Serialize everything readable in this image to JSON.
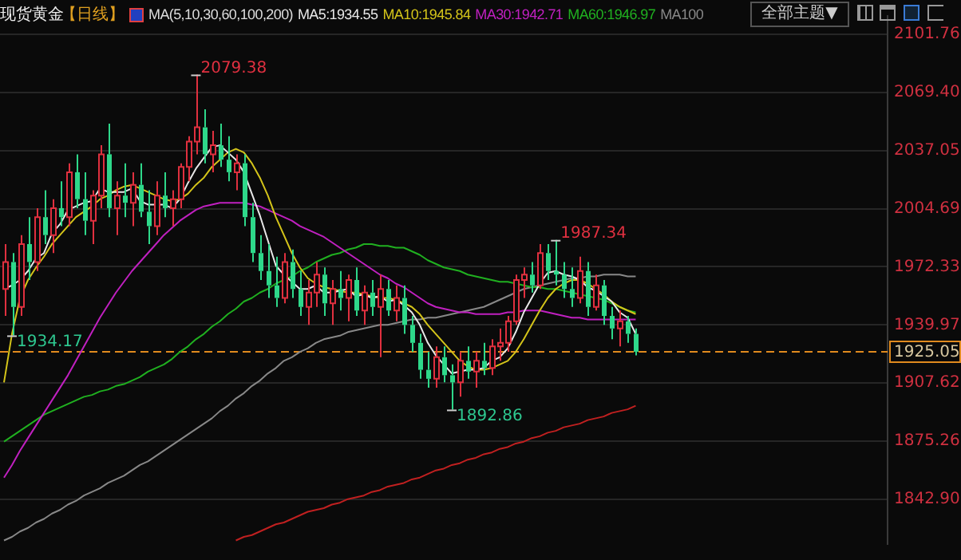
{
  "chart_data": {
    "type": "candlestick",
    "title": "现货黄金",
    "subtitle": "【日线】",
    "legend_title": "MA(5,10,30,60,100,200)",
    "legend": "top",
    "grid": "y",
    "tick_labels": "y",
    "categories": [
      null,
      null,
      null,
      null,
      null,
      null,
      null,
      null,
      null,
      null,
      null,
      null,
      null,
      null,
      null,
      null,
      null,
      null,
      null,
      null,
      null,
      null,
      null,
      null,
      null,
      null,
      null,
      null,
      null,
      null,
      null,
      null,
      null,
      null,
      null,
      null,
      null,
      null,
      null,
      null,
      null,
      null,
      null,
      null,
      null,
      null,
      null,
      null,
      null,
      null,
      null,
      null,
      null,
      null,
      null,
      null,
      null,
      null,
      null,
      null,
      null,
      null,
      null,
      null,
      null,
      null,
      null,
      null,
      null,
      null,
      null,
      null,
      null,
      null,
      null,
      null,
      null,
      null,
      null,
      null,
      null,
      null,
      null,
      null,
      null,
      null,
      null,
      null,
      null,
      null,
      null,
      null,
      null,
      null,
      null,
      null,
      null,
      null,
      null,
      null,
      null,
      null,
      null,
      null,
      null,
      null,
      null,
      null,
      null,
      null,
      null
    ],
    "ylim": [
      1818,
      2112
    ],
    "yticks": [
      {
        "value": 1842.9,
        "label": "1842.90"
      },
      1875.26,
      1907.62,
      1939.97,
      1972.33,
      2004.69,
      2037.05,
      {
        "value": 2069.4,
        "label": "2069.40"
      },
      2101.76
    ],
    "ohlc": [
      [
        1960,
        1985,
        1945,
        1975
      ],
      [
        1975,
        1980,
        1934.17,
        1950
      ],
      [
        1950,
        1990,
        1945,
        1985
      ],
      [
        1985,
        2000,
        1965,
        1975
      ],
      [
        1975,
        2005,
        1970,
        2000
      ],
      [
        2000,
        2015,
        1985,
        1990
      ],
      [
        1990,
        2010,
        1980,
        2005
      ],
      [
        2005,
        2020,
        1995,
        2000
      ],
      [
        2000,
        2030,
        1995,
        2025
      ],
      [
        2025,
        2035,
        2005,
        2010
      ],
      [
        2010,
        2025,
        1990,
        1998
      ],
      [
        1998,
        2015,
        1985,
        2012
      ],
      [
        2012,
        2040,
        2005,
        2035
      ],
      [
        2035,
        2052,
        2000,
        2005
      ],
      [
        2005,
        2020,
        1990,
        2012
      ],
      [
        2012,
        2030,
        2000,
        2008
      ],
      [
        2008,
        2025,
        1995,
        2018
      ],
      [
        2018,
        2030,
        2000,
        2003
      ],
      [
        2003,
        2015,
        1985,
        1995
      ],
      [
        1995,
        2020,
        1990,
        2012
      ],
      [
        2012,
        2025,
        2000,
        2005
      ],
      [
        2005,
        2015,
        1995,
        2010
      ],
      [
        2010,
        2030,
        2005,
        2028
      ],
      [
        2028,
        2045,
        2020,
        2042
      ],
      [
        2042,
        2079.38,
        2035,
        2050
      ],
      [
        2050,
        2060,
        2030,
        2035
      ],
      [
        2035,
        2048,
        2025,
        2040
      ],
      [
        2040,
        2052,
        2028,
        2032
      ],
      [
        2032,
        2045,
        2020,
        2025
      ],
      [
        2025,
        2035,
        2015,
        2030
      ],
      [
        2030,
        2035,
        1995,
        2000
      ],
      [
        2000,
        2008,
        1975,
        1980
      ],
      [
        1980,
        1990,
        1965,
        1970
      ],
      [
        1970,
        1985,
        1955,
        1962
      ],
      [
        1962,
        1978,
        1950,
        1955
      ],
      [
        1955,
        1980,
        1952,
        1975
      ],
      [
        1975,
        1982,
        1955,
        1960
      ],
      [
        1960,
        1970,
        1945,
        1950
      ],
      [
        1950,
        1965,
        1940,
        1958
      ],
      [
        1958,
        1975,
        1950,
        1968
      ],
      [
        1968,
        1972,
        1945,
        1952
      ],
      [
        1952,
        1965,
        1940,
        1960
      ],
      [
        1960,
        1970,
        1948,
        1955
      ],
      [
        1955,
        1968,
        1942,
        1965
      ],
      [
        1965,
        1972,
        1945,
        1948
      ],
      [
        1948,
        1962,
        1940,
        1958
      ],
      [
        1958,
        1965,
        1945,
        1950
      ],
      [
        1950,
        1968,
        1922,
        1960
      ],
      [
        1960,
        1965,
        1945,
        1948
      ],
      [
        1948,
        1962,
        1942,
        1955
      ],
      [
        1955,
        1962,
        1935,
        1940
      ],
      [
        1940,
        1945,
        1925,
        1930
      ],
      [
        1930,
        1935,
        1910,
        1915
      ],
      [
        1915,
        1925,
        1905,
        1910
      ],
      [
        1910,
        1928,
        1905,
        1922
      ],
      [
        1922,
        1928,
        1908,
        1912
      ],
      [
        1912,
        1918,
        1892.86,
        1908
      ],
      [
        1908,
        1925,
        1900,
        1920
      ],
      [
        1920,
        1928,
        1910,
        1914
      ],
      [
        1914,
        1925,
        1905,
        1920
      ],
      [
        1920,
        1930,
        1912,
        1916
      ],
      [
        1916,
        1932,
        1912,
        1928
      ],
      [
        1928,
        1938,
        1920,
        1930
      ],
      [
        1930,
        1945,
        1925,
        1942
      ],
      [
        1942,
        1968,
        1940,
        1965
      ],
      [
        1965,
        1972,
        1955,
        1968
      ],
      [
        1968,
        1975,
        1958,
        1962
      ],
      [
        1962,
        1985,
        1960,
        1980
      ],
      [
        1980,
        1985,
        1965,
        1970
      ],
      [
        1970,
        1987.34,
        1962,
        1968
      ],
      [
        1968,
        1975,
        1955,
        1960
      ],
      [
        1960,
        1972,
        1950,
        1955
      ],
      [
        1955,
        1978,
        1952,
        1970
      ],
      [
        1970,
        1975,
        1945,
        1950
      ],
      [
        1950,
        1968,
        1948,
        1962
      ],
      [
        1962,
        1965,
        1940,
        1945
      ],
      [
        1945,
        1950,
        1932,
        1938
      ],
      [
        1938,
        1948,
        1928,
        1942
      ],
      [
        1942,
        1945,
        1930,
        1935
      ],
      [
        1935,
        1938,
        1923,
        1925.05
      ],
      null,
      null,
      null,
      null,
      null,
      null,
      null,
      null,
      null,
      null,
      null,
      null,
      null,
      null,
      null,
      null,
      null,
      null,
      null,
      null,
      null,
      null,
      null,
      null,
      null,
      null,
      null,
      null,
      null,
      null,
      null
    ],
    "series": [
      {
        "type": "line",
        "name": "MA5:1934.55",
        "color": "#e8e8e8",
        "values": [
          1960,
          1962,
          1965,
          1970,
          1977,
          1980,
          1991,
          1996,
          2004,
          2006,
          2008,
          2009,
          2016,
          2014,
          2014,
          2014,
          2016,
          2009,
          2007,
          2007,
          2007,
          2005,
          2010,
          2019,
          2027,
          2033,
          2039,
          2040,
          2036,
          2032,
          2025,
          2013,
          2001,
          1987,
          1973,
          1968,
          1964,
          1960,
          1960,
          1962,
          1958,
          1958,
          1959,
          1960,
          1956,
          1957,
          1955,
          1956,
          1953,
          1954,
          1951,
          1947,
          1940,
          1930,
          1923,
          1918,
          1913,
          1914,
          1915,
          1915,
          1916,
          1920,
          1922,
          1927,
          1936,
          1947,
          1955,
          1963,
          1969,
          1970,
          1968,
          1967,
          1965,
          1961,
          1959,
          1956,
          1953,
          1947,
          1944,
          1935,
          null,
          null,
          null,
          null,
          null,
          null,
          null,
          null,
          null,
          null,
          null,
          null,
          null,
          null,
          null,
          null,
          null,
          null,
          null,
          null,
          null,
          null,
          null,
          null,
          null,
          null,
          null,
          null,
          null,
          null,
          null
        ]
      },
      {
        "type": "line",
        "name": "MA10:1945.84",
        "color": "#d4c41a",
        "values": [
          1908,
          1935,
          1955,
          1965,
          1972,
          1978,
          1985,
          1990,
          1995,
          2000,
          2003,
          2006,
          2010,
          2012,
          2015,
          2017,
          2018,
          2016,
          2014,
          2012,
          2010,
          2009,
          2010,
          2013,
          2018,
          2022,
          2028,
          2032,
          2036,
          2038,
          2036,
          2030,
          2022,
          2012,
          2000,
          1990,
          1980,
          1972,
          1966,
          1963,
          1961,
          1960,
          1959,
          1958,
          1958,
          1957,
          1956,
          1955,
          1955,
          1954,
          1952,
          1950,
          1946,
          1940,
          1935,
          1930,
          1925,
          1920,
          1917,
          1915,
          1915,
          1916,
          1918,
          1920,
          1925,
          1932,
          1940,
          1948,
          1955,
          1960,
          1963,
          1965,
          1965,
          1963,
          1960,
          1957,
          1953,
          1950,
          1948,
          1946,
          null,
          null,
          null,
          null,
          null,
          null,
          null,
          null,
          null,
          null,
          null,
          null,
          null,
          null,
          null,
          null,
          null,
          null,
          null,
          null,
          null,
          null,
          null,
          null,
          null,
          null,
          null,
          null,
          null,
          null,
          null
        ]
      },
      {
        "type": "line",
        "name": "MA30:1942.71",
        "color": "#c020c0",
        "values": [
          1855,
          1862,
          1870,
          1877,
          1884,
          1891,
          1898,
          1905,
          1912,
          1920,
          1928,
          1936,
          1944,
          1951,
          1958,
          1964,
          1970,
          1975,
          1980,
          1985,
          1990,
          1994,
          1998,
          2001,
          2004,
          2006,
          2007,
          2008,
          2008,
          2008,
          2008,
          2007,
          2006,
          2004,
          2002,
          2000,
          1998,
          1995,
          1993,
          1991,
          1989,
          1986,
          1983,
          1980,
          1977,
          1974,
          1971,
          1968,
          1966,
          1963,
          1961,
          1958,
          1955,
          1952,
          1950,
          1949,
          1948,
          1947,
          1947,
          1946,
          1946,
          1946,
          1946,
          1947,
          1947,
          1948,
          1948,
          1948,
          1947,
          1946,
          1945,
          1944,
          1944,
          1943,
          1943,
          1943,
          1943,
          1943,
          1943,
          1943,
          null,
          null,
          null,
          null,
          null,
          null,
          null,
          null,
          null,
          null,
          null,
          null,
          null,
          null,
          null,
          null,
          null,
          null,
          null,
          null,
          null,
          null,
          null,
          null,
          null,
          null,
          null,
          null,
          null,
          null,
          null
        ]
      },
      {
        "type": "line",
        "name": "MA60:1946.97",
        "color": "#20b020",
        "values": [
          1875,
          1878,
          1881,
          1884,
          1887,
          1890,
          1892,
          1894,
          1896,
          1898,
          1900,
          1901,
          1903,
          1904,
          1906,
          1907,
          1909,
          1911,
          1914,
          1916,
          1918,
          1921,
          1925,
          1928,
          1932,
          1935,
          1939,
          1942,
          1946,
          1949,
          1953,
          1955,
          1958,
          1960,
          1963,
          1965,
          1967,
          1970,
          1972,
          1975,
          1977,
          1979,
          1980,
          1982,
          1983,
          1985,
          1985,
          1984,
          1984,
          1983,
          1983,
          1981,
          1979,
          1976,
          1974,
          1972,
          1971,
          1970,
          1968,
          1967,
          1966,
          1965,
          1964,
          1964,
          1963,
          1962,
          1961,
          1961,
          1960,
          1960,
          1959,
          1958,
          1957,
          1956,
          1955,
          1954,
          1952,
          1950,
          1948,
          1947,
          null,
          null,
          null,
          null,
          null,
          null,
          null,
          null,
          null,
          null,
          null,
          null,
          null,
          null,
          null,
          null,
          null,
          null,
          null,
          null,
          null,
          null,
          null,
          null,
          null,
          null,
          null,
          null,
          null,
          null,
          null
        ]
      },
      {
        "type": "line",
        "name": "MA100",
        "color": "#888888",
        "values": [
          1820,
          1822,
          1825,
          1827,
          1830,
          1832,
          1835,
          1837,
          1840,
          1842,
          1845,
          1847,
          1849,
          1852,
          1854,
          1856,
          1859,
          1862,
          1864,
          1867,
          1870,
          1873,
          1876,
          1879,
          1882,
          1885,
          1888,
          1892,
          1895,
          1899,
          1902,
          1906,
          1909,
          1913,
          1916,
          1920,
          1922,
          1925,
          1927,
          1930,
          1932,
          1933,
          1934,
          1936,
          1937,
          1938,
          1939,
          1940,
          1940,
          1941,
          1942,
          1943,
          1943,
          1944,
          1944,
          1945,
          1946,
          1947,
          1948,
          1949,
          1950,
          1952,
          1954,
          1956,
          1958,
          1960,
          1961,
          1962,
          1963,
          1964,
          1965,
          1966,
          1966,
          1967,
          1967,
          1968,
          1968,
          1968,
          1967,
          1967,
          null,
          null,
          null,
          null,
          null,
          null,
          null,
          null,
          null,
          null,
          null,
          null,
          null,
          null,
          null,
          null,
          null,
          null,
          null,
          null,
          null,
          null,
          null,
          null,
          null,
          null,
          null,
          null,
          null,
          null,
          null
        ]
      },
      {
        "type": "line",
        "color": "#c02020",
        "values": [
          null,
          null,
          null,
          null,
          null,
          null,
          null,
          null,
          null,
          null,
          null,
          null,
          null,
          null,
          null,
          null,
          null,
          null,
          null,
          null,
          null,
          null,
          null,
          null,
          null,
          null,
          null,
          null,
          null,
          1820,
          1822,
          1823,
          1825,
          1827,
          1829,
          1830,
          1832,
          1834,
          1836,
          1837,
          1838,
          1840,
          1841,
          1843,
          1844,
          1845,
          1847,
          1848,
          1850,
          1851,
          1852,
          1854,
          1855,
          1857,
          1859,
          1860,
          1862,
          1863,
          1865,
          1866,
          1868,
          1869,
          1871,
          1872,
          1874,
          1875,
          1877,
          1878,
          1880,
          1881,
          1883,
          1884,
          1885,
          1887,
          1888,
          1889,
          1891,
          1892,
          1893,
          1895,
          null,
          null,
          null,
          null,
          null,
          null,
          null,
          null,
          null,
          null,
          null,
          null,
          null,
          null,
          null,
          null,
          null,
          null,
          null,
          null,
          null,
          null,
          null,
          null,
          null,
          null,
          null,
          null,
          null,
          null,
          null
        ]
      }
    ],
    "ref_lines": [
      {
        "axis": "y",
        "value": 1925.05,
        "label": "1925.05",
        "color": "#e08a1e",
        "line_style": "dashed"
      }
    ],
    "annotations": [
      "全部主题▼",
      "2079.38",
      "1987.34",
      "1892.86",
      "1934.17"
    ]
  }
}
